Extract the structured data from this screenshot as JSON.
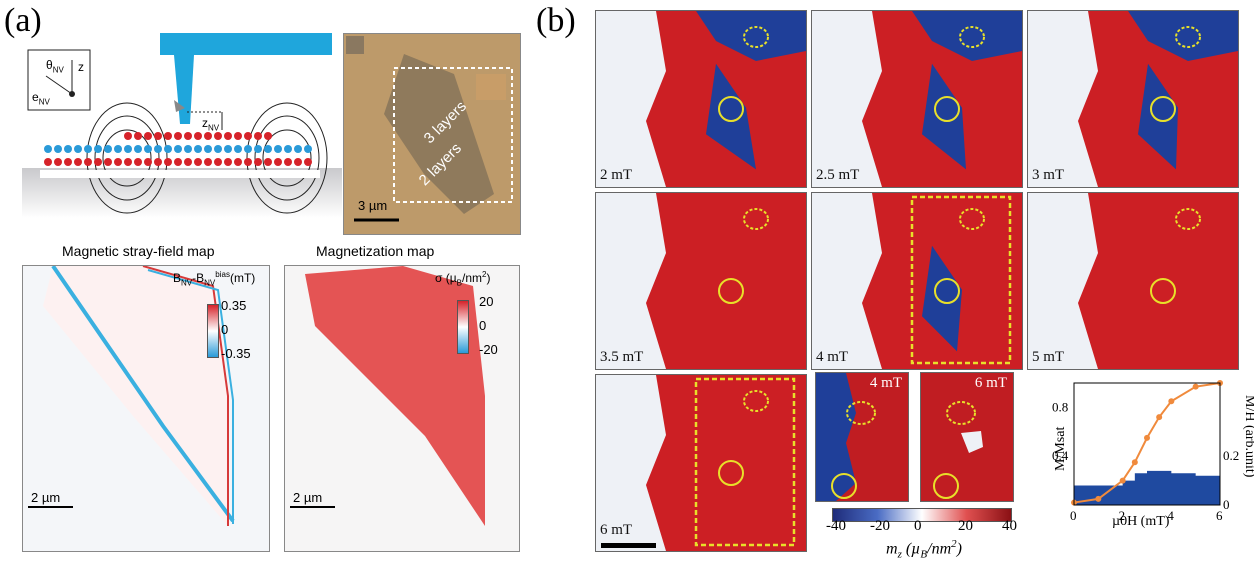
{
  "panel_a": {
    "label": "(a)",
    "schematic": {
      "theta_label": "θ",
      "theta_sub": "NV",
      "z_label": "z",
      "e_label": "e",
      "e_sub": "NV",
      "znv_label": "z",
      "znv_sub": "NV"
    },
    "micrograph": {
      "label_3": "3 layers",
      "label_2": "2 layers",
      "scalebar": "3 µm"
    },
    "stray_field": {
      "title": "Magnetic stray-field map",
      "cb_label_a": "B",
      "cb_sub_a": "NV",
      "cb_label_b": "-B",
      "cb_sub_b": "NV",
      "cb_sup_b": "bias",
      "cb_unit": "(mT)",
      "ticks": [
        "0.35",
        "0",
        "-0.35"
      ],
      "scalebar": "2 µm"
    },
    "magnetization": {
      "title": "Magnetization map",
      "cb_label": "σ (µ",
      "cb_sub": "B",
      "cb_unit": "/nm",
      "cb_sup": "2",
      "cb_close": ")",
      "ticks": [
        "20",
        "0",
        "-20"
      ],
      "scalebar": "2 µm"
    }
  },
  "panel_b": {
    "label": "(b)",
    "maps": [
      {
        "field": "2 mT"
      },
      {
        "field": "2.5 mT"
      },
      {
        "field": "3 mT"
      },
      {
        "field": "3.5 mT"
      },
      {
        "field": "4 mT"
      },
      {
        "field": "5 mT"
      },
      {
        "field": "6 mT"
      }
    ],
    "insets": [
      {
        "field": "4 mT"
      },
      {
        "field": "6 mT"
      }
    ],
    "colorbar": {
      "ticks": [
        "-40",
        "-20",
        "0",
        "20",
        "40"
      ],
      "label": "m",
      "label_sub": "z",
      "label_unit": "(µ",
      "label_unit_sub": "B",
      "label_unit_tail": "/nm",
      "label_unit_sup": "2",
      "label_close": ")"
    },
    "colors": {
      "red": "#cc1f24",
      "blue": "#1f3f99",
      "white": "#eef1f6",
      "accent": "#e8e02a",
      "orange": "#f08a3c"
    }
  },
  "chart_data": {
    "type": "line",
    "xlabel": "µ0H (mT)",
    "ylabel_left": "M/Msat",
    "ylabel_right": "M/H (arb.unit)",
    "xlim": [
      0,
      6
    ],
    "ylim_left": [
      0,
      1.0
    ],
    "ylim_right": [
      0,
      0.5
    ],
    "x_ticks": [
      "0",
      "2",
      "4",
      "6"
    ],
    "y_left_ticks": [
      "0.4",
      "0.8"
    ],
    "y_right_ticks": [
      "0",
      "0.2"
    ],
    "series": [
      {
        "axis": "left",
        "x": [
          0,
          1,
          2,
          2.5,
          3,
          3.5,
          4,
          5,
          6
        ],
        "values": [
          0.02,
          0.05,
          0.2,
          0.35,
          0.55,
          0.72,
          0.85,
          0.97,
          1.0
        ]
      },
      {
        "axis": "right",
        "type": "area",
        "x": [
          0,
          2,
          2.5,
          3,
          3.5,
          4,
          5,
          6
        ],
        "values": [
          0.08,
          0.1,
          0.13,
          0.14,
          0.14,
          0.13,
          0.12,
          0.11
        ]
      }
    ]
  }
}
